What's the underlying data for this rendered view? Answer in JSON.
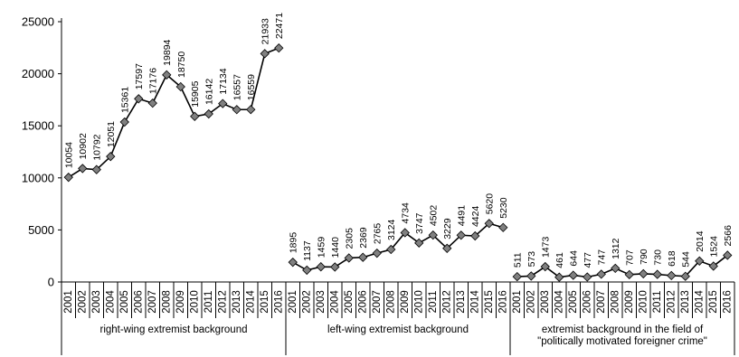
{
  "chart_data": {
    "type": "line",
    "title": "",
    "xlabel": "",
    "ylabel": "",
    "ylim": [
      0,
      25000
    ],
    "yticks": [
      0,
      5000,
      10000,
      15000,
      20000,
      25000
    ],
    "grid": false,
    "legend": "none",
    "marker": "diamond",
    "line_color": "#000000",
    "marker_color": "#808080",
    "groups": [
      {
        "label_lines": [
          "right-wing extremist background"
        ],
        "categories": [
          "2001",
          "2002",
          "2003",
          "2004",
          "2005",
          "2006",
          "2007",
          "2008",
          "2009",
          "2010",
          "2011",
          "2012",
          "2013",
          "2014",
          "2015",
          "2016"
        ],
        "values": [
          10054,
          10902,
          10792,
          12051,
          15361,
          17597,
          17176,
          19894,
          18750,
          15905,
          16142,
          17134,
          16557,
          16559,
          21933,
          22471
        ]
      },
      {
        "label_lines": [
          "left-wing extremist background"
        ],
        "categories": [
          "2001",
          "2002",
          "2003",
          "2004",
          "2005",
          "2006",
          "2007",
          "2008",
          "2009",
          "2010",
          "2011",
          "2012",
          "2013",
          "2014",
          "2015",
          "2016"
        ],
        "values": [
          1895,
          1137,
          1459,
          1440,
          2305,
          2369,
          2765,
          3124,
          4734,
          3747,
          4502,
          3229,
          4491,
          4424,
          5620,
          5230
        ]
      },
      {
        "label_lines": [
          "extremist background in the field of",
          "\"politically motivated foreigner crime\""
        ],
        "categories": [
          "2001",
          "2002",
          "2003",
          "2004",
          "2005",
          "2006",
          "2007",
          "2008",
          "2009",
          "2010",
          "2011",
          "2012",
          "2013",
          "2014",
          "2015",
          "2016"
        ],
        "values": [
          511,
          573,
          1473,
          461,
          644,
          477,
          747,
          1312,
          707,
          790,
          730,
          618,
          544,
          2014,
          1524,
          2566
        ]
      }
    ]
  }
}
